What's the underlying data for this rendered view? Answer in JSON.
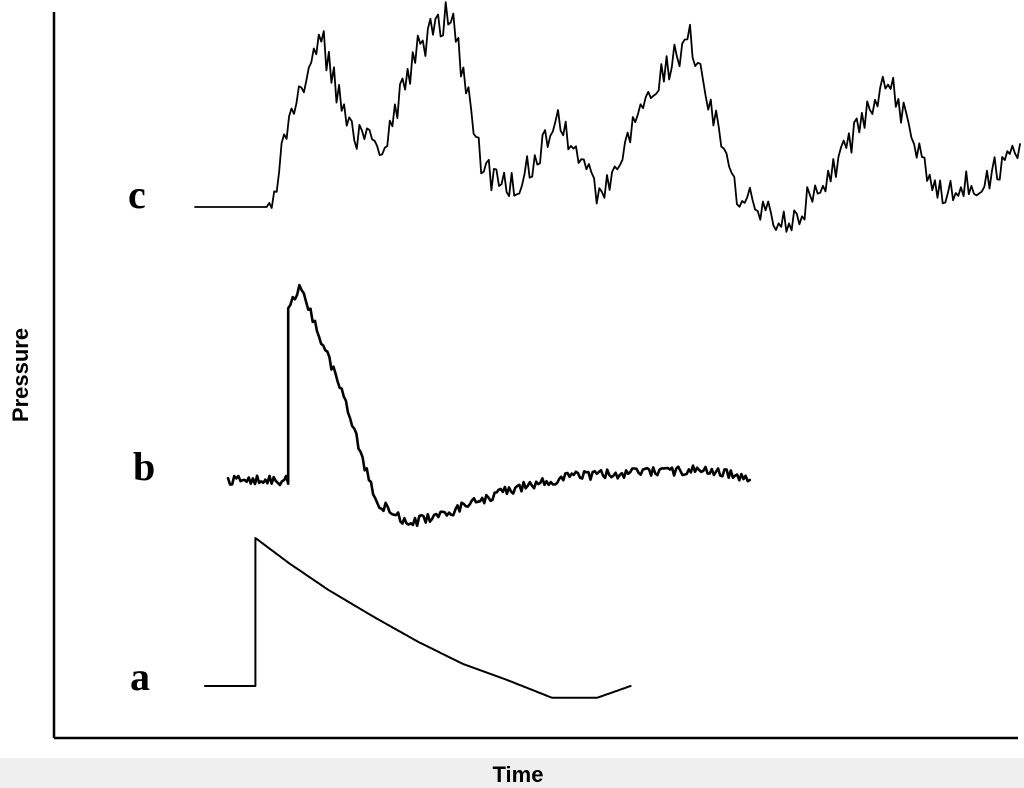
{
  "chart_data": {
    "type": "line",
    "title": "",
    "xlabel": "Time",
    "ylabel": "Pressure",
    "grid": false,
    "legend": "none",
    "colors": {
      "trace": "#000000",
      "background": "#ffffff"
    },
    "series": [
      {
        "name": "a",
        "description_shape": "step rise then smooth exponential-like decay with slight undershoot",
        "x": [
          0.0,
          0.09,
          0.09,
          0.15,
          0.22,
          0.3,
          0.38,
          0.46,
          0.54,
          0.62,
          0.7,
          0.76
        ],
        "y": [
          0.0,
          0.0,
          1.0,
          0.83,
          0.65,
          0.47,
          0.3,
          0.15,
          0.04,
          -0.08,
          -0.08,
          0.0
        ]
      },
      {
        "name": "b",
        "description_shape": "noisy baseline, sharp peak, fast decay to undershoot, slow recovery",
        "x": [
          0.0,
          0.09,
          0.09,
          0.11,
          0.13,
          0.17,
          0.22,
          0.27,
          0.34,
          0.42,
          0.52,
          0.62,
          0.72,
          0.78
        ],
        "y": [
          0.0,
          0.0,
          0.85,
          0.97,
          0.78,
          0.45,
          -0.1,
          -0.22,
          -0.15,
          -0.05,
          0.02,
          0.04,
          0.05,
          0.0
        ]
      },
      {
        "name": "c",
        "description_shape": "flat baseline then irregular noisy fluctuations",
        "x": [
          0.0,
          0.09,
          0.12,
          0.15,
          0.19,
          0.23,
          0.27,
          0.31,
          0.35,
          0.39,
          0.44,
          0.49,
          0.54,
          0.6,
          0.66,
          0.72,
          0.78,
          0.84,
          0.9,
          0.96,
          1.0
        ],
        "y": [
          0.0,
          0.0,
          0.55,
          0.98,
          0.4,
          0.35,
          0.88,
          1.08,
          0.2,
          0.1,
          0.5,
          0.05,
          0.55,
          0.95,
          0.05,
          -0.1,
          0.25,
          0.72,
          0.1,
          0.15,
          0.35
        ]
      }
    ],
    "series_labels": [
      "c",
      "b",
      "a"
    ]
  }
}
